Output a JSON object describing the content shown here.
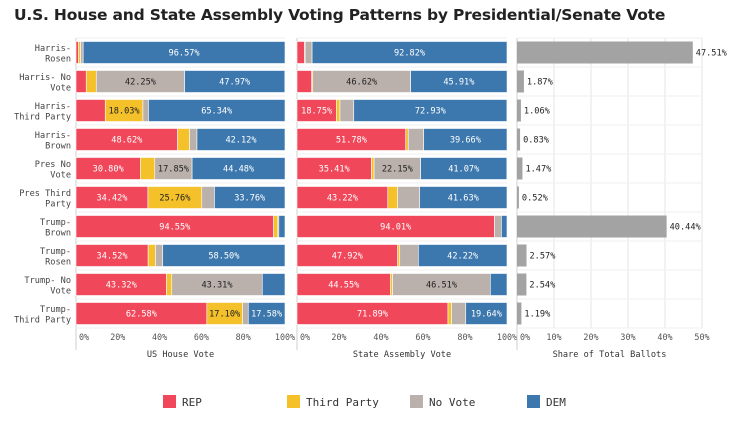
{
  "colors": {
    "rep": "#F0485A",
    "third": "#F4C12A",
    "novote": "#BAB0AC",
    "dem": "#3C78AE",
    "share": "#A3A3A3"
  },
  "chart_data": {
    "type": "bar",
    "title": "U.S. House and State Assembly Voting Patterns by Presidential/Senate Vote",
    "rows": [
      {
        "label": [
          "Harris-",
          "Rosen"
        ]
      },
      {
        "label": [
          "Harris- No",
          "Vote"
        ]
      },
      {
        "label": [
          "Harris-",
          "Third Party"
        ]
      },
      {
        "label": [
          "Harris-",
          "Brown"
        ]
      },
      {
        "label": [
          "Pres No",
          "Vote"
        ]
      },
      {
        "label": [
          "Pres Third",
          "Party"
        ]
      },
      {
        "label": [
          "Trump-",
          "Brown"
        ]
      },
      {
        "label": [
          "Trump-",
          "Rosen"
        ]
      },
      {
        "label": [
          "Trump- No",
          "Vote"
        ]
      },
      {
        "label": [
          "Trump-",
          "Third Party"
        ]
      }
    ],
    "legend": {
      "placement": "bottom",
      "entries": [
        {
          "key": "rep",
          "label": "REP"
        },
        {
          "key": "third",
          "label": "Third Party"
        },
        {
          "key": "novote",
          "label": "No Vote"
        },
        {
          "key": "dem",
          "label": "DEM"
        }
      ]
    },
    "panels": [
      {
        "type": "stacked-bar-100",
        "xlabel": "US House Vote",
        "xlim": [
          0,
          100
        ],
        "ticks": [
          0,
          20,
          40,
          60,
          80,
          100
        ],
        "tick_labels": [
          "0%",
          "20%",
          "40%",
          "60%",
          "80%",
          "100%"
        ],
        "series": [
          {
            "key": "rep",
            "name": "REP",
            "values": [
              1.2,
              4.9,
              14.0,
              48.62,
              30.8,
              34.42,
              94.55,
              34.52,
              43.32,
              62.58
            ]
          },
          {
            "key": "third",
            "name": "Third Party",
            "values": [
              1.0,
              4.8,
              18.03,
              5.7,
              6.9,
              25.76,
              2.0,
              3.5,
              2.5,
              17.1
            ]
          },
          {
            "key": "novote",
            "name": "No Vote",
            "values": [
              1.23,
              42.25,
              2.63,
              3.56,
              17.85,
              6.06,
              0.5,
              3.48,
              43.31,
              2.74
            ]
          },
          {
            "key": "dem",
            "name": "DEM",
            "values": [
              96.57,
              47.97,
              65.34,
              42.12,
              44.48,
              33.76,
              2.95,
              58.5,
              10.87,
              17.58
            ]
          }
        ],
        "data_labels": [
          [
            null,
            null,
            null,
            "96.57%"
          ],
          [
            null,
            null,
            "42.25%",
            "47.97%"
          ],
          [
            null,
            "18.03%",
            null,
            "65.34%"
          ],
          [
            "48.62%",
            null,
            null,
            "42.12%"
          ],
          [
            "30.80%",
            null,
            "17.85%",
            "44.48%"
          ],
          [
            "34.42%",
            "25.76%",
            null,
            "33.76%"
          ],
          [
            "94.55%",
            null,
            null,
            null
          ],
          [
            "34.52%",
            null,
            null,
            "58.50%"
          ],
          [
            "43.32%",
            null,
            "43.31%",
            null
          ],
          [
            "62.58%",
            "17.10%",
            null,
            "17.58%"
          ]
        ]
      },
      {
        "type": "stacked-bar-100",
        "xlabel": "State Assembly Vote",
        "xlim": [
          0,
          100
        ],
        "ticks": [
          0,
          20,
          40,
          60,
          80,
          100
        ],
        "tick_labels": [
          "0%",
          "20%",
          "40%",
          "60%",
          "80%",
          "100%"
        ],
        "series": [
          {
            "key": "rep",
            "name": "REP",
            "values": [
              3.6,
              7.0,
              18.75,
              51.78,
              35.41,
              43.22,
              94.01,
              47.92,
              44.55,
              71.89
            ]
          },
          {
            "key": "third",
            "name": "Third Party",
            "values": [
              0.3,
              0.5,
              1.7,
              1.2,
              1.3,
              4.7,
              0.0,
              1.0,
              1.0,
              1.7
            ]
          },
          {
            "key": "novote",
            "name": "No Vote",
            "values": [
              3.28,
              46.62,
              6.58,
              7.36,
              22.15,
              10.45,
              3.33,
              8.86,
              46.51,
              6.77
            ]
          },
          {
            "key": "dem",
            "name": "DEM",
            "values": [
              92.82,
              45.91,
              72.93,
              39.66,
              41.07,
              41.63,
              2.66,
              42.22,
              7.94,
              19.64
            ]
          }
        ],
        "data_labels": [
          [
            null,
            null,
            null,
            "92.82%"
          ],
          [
            null,
            null,
            "46.62%",
            "45.91%"
          ],
          [
            "18.75%",
            null,
            null,
            "72.93%"
          ],
          [
            "51.78%",
            null,
            null,
            "39.66%"
          ],
          [
            "35.41%",
            null,
            "22.15%",
            "41.07%"
          ],
          [
            "43.22%",
            null,
            null,
            "41.63%"
          ],
          [
            "94.01%",
            null,
            null,
            null
          ],
          [
            "47.92%",
            null,
            null,
            "42.22%"
          ],
          [
            "44.55%",
            null,
            "46.51%",
            null
          ],
          [
            "71.89%",
            null,
            null,
            "19.64%"
          ]
        ]
      },
      {
        "type": "bar",
        "xlabel": "Share of Total Ballots",
        "xlim": [
          0,
          50
        ],
        "ticks": [
          0,
          10,
          20,
          30,
          40,
          50
        ],
        "tick_labels": [
          "0%",
          "10%",
          "20%",
          "30%",
          "40%",
          "50%"
        ],
        "values": [
          47.51,
          1.87,
          1.06,
          0.83,
          1.47,
          0.52,
          40.44,
          2.57,
          2.54,
          1.19
        ],
        "value_labels": [
          "47.51%",
          "1.87%",
          "1.06%",
          "0.83%",
          "1.47%",
          "0.52%",
          "40.44%",
          "2.57%",
          "2.54%",
          "1.19%"
        ]
      }
    ]
  }
}
